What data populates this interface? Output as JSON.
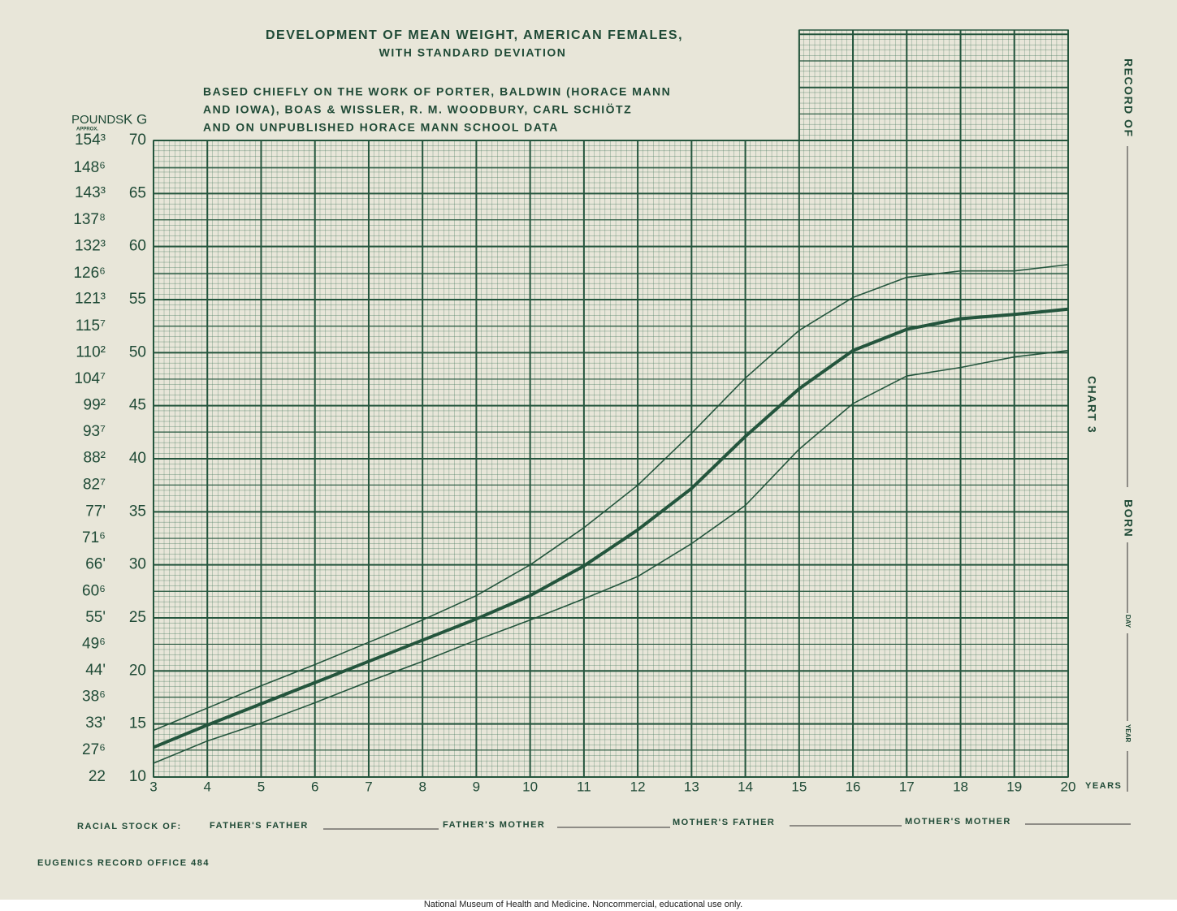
{
  "chart_data": {
    "type": "line",
    "title": "DEVELOPMENT OF MEAN WEIGHT, AMERICAN FEMALES,",
    "subtitle": "WITH STANDARD DEVIATION",
    "notes": [
      "BASED CHIEFLY ON THE WORK OF PORTER, BALDWIN (HORACE MANN",
      "AND IOWA), BOAS & WISSLER, R. M. WOODBURY, CARL SCHIÖTZ",
      "AND ON UNPUBLISHED HORACE MANN SCHOOL DATA"
    ],
    "x_label": "YEARS",
    "y_label": "K G",
    "y2_label": "POUNDS",
    "y2_note": "APPROX.",
    "x": [
      3,
      4,
      5,
      6,
      7,
      8,
      9,
      10,
      11,
      12,
      13,
      14,
      15,
      16,
      17,
      18,
      19,
      20
    ],
    "series": [
      {
        "color": "#24553d",
        "line_width": 1.6,
        "values": [
          14.4,
          16.5,
          18.6,
          20.6,
          22.7,
          24.8,
          27.1,
          30.0,
          33.5,
          37.5,
          42.4,
          47.6,
          52.1,
          55.2,
          57.1,
          57.7,
          57.7,
          58.3
        ]
      },
      {
        "color": "#24553d",
        "line_width": 4,
        "values": [
          12.8,
          14.9,
          16.9,
          18.9,
          20.9,
          22.9,
          24.9,
          27.1,
          29.9,
          33.3,
          37.2,
          42.1,
          46.6,
          50.2,
          52.2,
          53.2,
          53.6,
          54.1
        ]
      },
      {
        "color": "#24553d",
        "line_width": 1.6,
        "values": [
          11.3,
          13.4,
          15.1,
          17.0,
          19.0,
          20.9,
          22.9,
          24.8,
          26.8,
          28.9,
          32.0,
          35.6,
          40.9,
          45.2,
          47.8,
          48.6,
          49.6,
          50.2
        ]
      }
    ],
    "xlim": [
      3,
      20
    ],
    "xticks": [
      3,
      4,
      5,
      6,
      7,
      8,
      9,
      10,
      11,
      12,
      13,
      14,
      15,
      16,
      17,
      18,
      19,
      20
    ],
    "ylim": [
      10,
      70
    ],
    "yticks": [
      10,
      15,
      20,
      25,
      30,
      35,
      40,
      45,
      50,
      55,
      60,
      65,
      70
    ],
    "y2lim": [
      22,
      154.3
    ],
    "y2ticks": [
      22,
      {
        "value": 27.6,
        "label": "27⁶"
      },
      {
        "value": 33.1,
        "label": "33'"
      },
      {
        "value": 38.6,
        "label": "38⁶"
      },
      {
        "value": 44.1,
        "label": "44'"
      },
      {
        "value": 49.6,
        "label": "49⁶"
      },
      {
        "value": 55.1,
        "label": "55'"
      },
      {
        "value": 60.6,
        "label": "60⁶"
      },
      {
        "value": 66.1,
        "label": "66'"
      },
      {
        "value": 71.6,
        "label": "71⁶"
      },
      {
        "value": 77.1,
        "label": "77'"
      },
      {
        "value": 82.7,
        "label": "82⁷"
      },
      {
        "value": 88.2,
        "label": "88²"
      },
      {
        "value": 93.7,
        "label": "93⁷"
      },
      {
        "value": 99.2,
        "label": "99²"
      },
      {
        "value": 104.7,
        "label": "104⁷"
      },
      {
        "value": 110.2,
        "label": "110²"
      },
      {
        "value": 115.7,
        "label": "115⁷"
      },
      {
        "value": 121.3,
        "label": "121³"
      },
      {
        "value": 126.6,
        "label": "126⁶"
      },
      {
        "value": 132.3,
        "label": "132³"
      },
      {
        "value": 137.8,
        "label": "137⁸"
      },
      {
        "value": 143.3,
        "label": "143³"
      },
      {
        "value": 148.6,
        "label": "148⁶"
      },
      {
        "value": 154.3,
        "label": "154³"
      }
    ],
    "grid": true
  },
  "margin": {
    "record": "RECORD OF",
    "chart": "CHART 3",
    "born": "BORN",
    "day": "DAY",
    "year": "YEAR"
  },
  "footer": {
    "racial_stock": "RACIAL STOCK OF:",
    "fields": [
      "FATHER'S FATHER",
      "FATHER'S MOTHER",
      "MOTHER'S FATHER",
      "MOTHER'S MOTHER"
    ],
    "office": "EUGENICS RECORD OFFICE 484",
    "credit": "National Museum of Health and Medicine. Noncommercial, educational use only."
  }
}
